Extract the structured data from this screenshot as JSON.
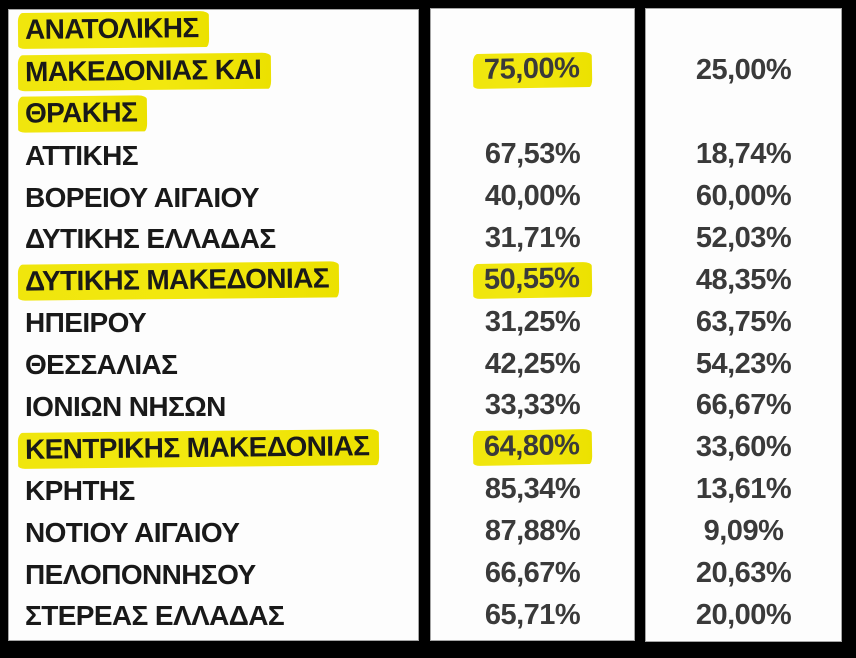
{
  "table": {
    "rows": [
      {
        "name": "ΑΝΑΤΟΛΙΚΗΣ ΜΑΚΕΔΟΝΙΑΣ ΚΑΙ ΘΡΑΚΗΣ",
        "name_lines": [
          "ΑΝΑΤΟΛΙΚΗΣ",
          "ΜΑΚΕΔΟΝΙΑΣ ΚΑΙ",
          "ΘΡΑΚΗΣ"
        ],
        "col1": "75,00%",
        "col2": "25,00%",
        "highlighted": true
      },
      {
        "name": "ΑΤΤΙΚΗΣ",
        "col1": "67,53%",
        "col2": "18,74%",
        "highlighted": false
      },
      {
        "name": "ΒΟΡΕΙΟΥ ΑΙΓΑΙΟΥ",
        "col1": "40,00%",
        "col2": "60,00%",
        "highlighted": false
      },
      {
        "name": "ΔΥΤΙΚΗΣ ΕΛΛΑΔΑΣ",
        "col1": "31,71%",
        "col2": "52,03%",
        "highlighted": false
      },
      {
        "name": "ΔΥΤΙΚΗΣ ΜΑΚΕΔΟΝΙΑΣ",
        "col1": "50,55%",
        "col2": "48,35%",
        "highlighted": true
      },
      {
        "name": "ΗΠΕΙΡΟΥ",
        "col1": "31,25%",
        "col2": "63,75%",
        "highlighted": false
      },
      {
        "name": "ΘΕΣΣΑΛΙΑΣ",
        "col1": "42,25%",
        "col2": "54,23%",
        "highlighted": false
      },
      {
        "name": "ΙΟΝΙΩΝ ΝΗΣΩΝ",
        "col1": "33,33%",
        "col2": "66,67%",
        "highlighted": false
      },
      {
        "name": "ΚΕΝΤΡΙΚΗΣ ΜΑΚΕΔΟΝΙΑΣ",
        "col1": "64,80%",
        "col2": "33,60%",
        "highlighted": true
      },
      {
        "name": "ΚΡΗΤΗΣ",
        "col1": "85,34%",
        "col2": "13,61%",
        "highlighted": false
      },
      {
        "name": "ΝΟΤΙΟΥ ΑΙΓΑΙΟΥ",
        "col1": "87,88%",
        "col2": "9,09%",
        "highlighted": false
      },
      {
        "name": "ΠΕΛΟΠΟΝΝΗΣΟΥ",
        "col1": "66,67%",
        "col2": "20,63%",
        "highlighted": false
      },
      {
        "name": "ΣΤΕΡΕΑΣ ΕΛΛΑΔΑΣ",
        "col1": "65,71%",
        "col2": "20,00%",
        "highlighted": false
      }
    ]
  },
  "chart_data": {
    "type": "table",
    "columns": [
      "region",
      "percent_column_1",
      "percent_column_2"
    ],
    "rows": [
      [
        "ΑΝΑΤΟΛΙΚΗΣ ΜΑΚΕΔΟΝΙΑΣ ΚΑΙ ΘΡΑΚΗΣ",
        "75,00%",
        "25,00%"
      ],
      [
        "ΑΤΤΙΚΗΣ",
        "67,53%",
        "18,74%"
      ],
      [
        "ΒΟΡΕΙΟΥ ΑΙΓΑΙΟΥ",
        "40,00%",
        "60,00%"
      ],
      [
        "ΔΥΤΙΚΗΣ ΕΛΛΑΔΑΣ",
        "31,71%",
        "52,03%"
      ],
      [
        "ΔΥΤΙΚΗΣ ΜΑΚΕΔΟΝΙΑΣ",
        "50,55%",
        "48,35%"
      ],
      [
        "ΗΠΕΙΡΟΥ",
        "31,25%",
        "63,75%"
      ],
      [
        "ΘΕΣΣΑΛΙΑΣ",
        "42,25%",
        "54,23%"
      ],
      [
        "ΙΟΝΙΩΝ ΝΗΣΩΝ",
        "33,33%",
        "66,67%"
      ],
      [
        "ΚΕΝΤΡΙΚΗΣ ΜΑΚΕΔΟΝΙΑΣ",
        "64,80%",
        "33,60%"
      ],
      [
        "ΚΡΗΤΗΣ",
        "85,34%",
        "13,61%"
      ],
      [
        "ΝΟΤΙΟΥ ΑΙΓΑΙΟΥ",
        "87,88%",
        "9,09%"
      ],
      [
        "ΠΕΛΟΠΟΝΝΗΣΟΥ",
        "66,67%",
        "20,63%"
      ],
      [
        "ΣΤΕΡΕΑΣ ΕΛΛΑΔΑΣ",
        "65,71%",
        "20,00%"
      ]
    ],
    "highlighted_rows": [
      "ΑΝΑΤΟΛΙΚΗΣ ΜΑΚΕΔΟΝΙΑΣ ΚΑΙ ΘΡΑΚΗΣ",
      "ΔΥΤΙΚΗΣ ΜΑΚΕΔΟΝΙΑΣ",
      "ΚΕΝΤΡΙΚΗΣ ΜΑΚΕΔΟΝΙΑΣ"
    ],
    "highlighted_col1_values": [
      "75,00%",
      "50,55%",
      "64,80%"
    ]
  },
  "colors": {
    "background": "#000000",
    "panel": "#fdfdfd",
    "highlight": "#f2e80f",
    "region_text": "#191919",
    "number_text": "#3a3a3a"
  }
}
